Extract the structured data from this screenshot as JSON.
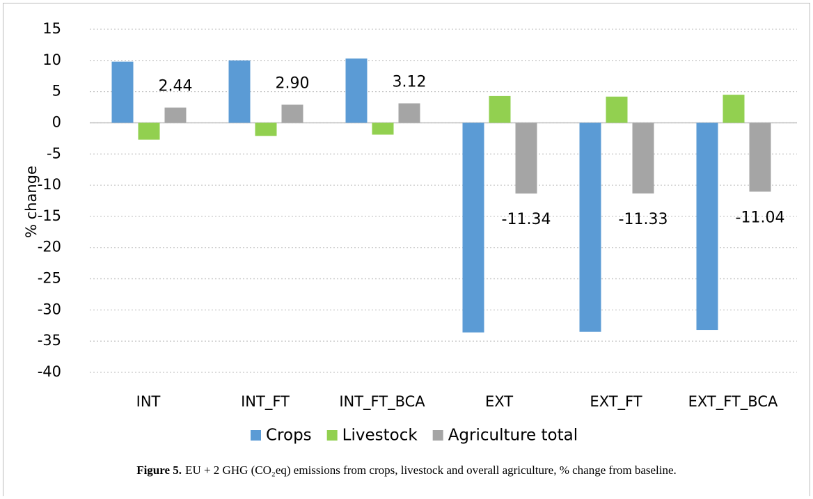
{
  "chart_data": {
    "type": "bar",
    "y_label": "% change",
    "categories": [
      "INT",
      "INT_FT",
      "INT_FT_BCA",
      "EXT",
      "EXT_FT",
      "EXT_FT_BCA"
    ],
    "series": [
      {
        "name": "Crops",
        "color": "#5b9bd5",
        "values": [
          9.8,
          10.0,
          10.3,
          -33.6,
          -33.5,
          -33.2
        ]
      },
      {
        "name": "Livestock",
        "color": "#92d050",
        "values": [
          -2.7,
          -2.1,
          -1.9,
          4.3,
          4.2,
          4.5
        ]
      },
      {
        "name": "Agriculture total",
        "color": "#a5a5a5",
        "values": [
          2.44,
          2.9,
          3.12,
          -11.34,
          -11.33,
          -11.04
        ],
        "value_labels": [
          "2.44",
          "2.90",
          "3.12",
          "-11.34",
          "-11.33",
          "-11.04"
        ]
      }
    ],
    "ylim": [
      -40,
      15
    ],
    "yticks": [
      -40,
      -35,
      -30,
      -25,
      -20,
      -15,
      -10,
      -5,
      0,
      5,
      10,
      15
    ],
    "grid": true,
    "legend": "bottom",
    "caption": {
      "label": "Figure 5.",
      "text": "EU + 2 GHG (CO₂eq) emissions from crops, livestock and overall agriculture, % change from baseline."
    }
  }
}
